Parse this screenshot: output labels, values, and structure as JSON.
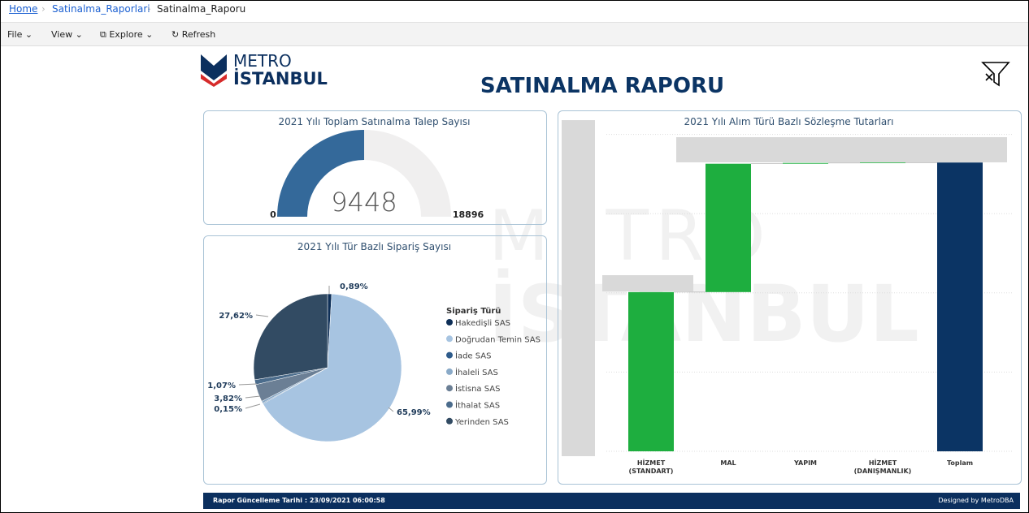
{
  "breadcrumb": [
    "Home",
    "Satinalma_Raporlari",
    "Satinalma_Raporu"
  ],
  "toolbar": [
    "File",
    "View",
    "Explore",
    "Refresh"
  ],
  "logo": [
    "METRO",
    "İSTANBUL"
  ],
  "title": "SATINALMA RAPORU",
  "chart_data": [
    {
      "type": "gauge",
      "title": "2021 Yılı Toplam Satınalma Talep Sayısı",
      "value": 9448,
      "min": 0,
      "max": 18896,
      "color": "#34699a",
      "track_color": "#f0efef"
    },
    {
      "type": "pie",
      "title": "2021 Yılı Tür Bazlı Sipariş Sayısı",
      "legend_title": "Sipariş Türü",
      "categories": [
        "Hakedişli SAS",
        "Doğrudan Temin SAS",
        "İade SAS",
        "İhaleli SAS",
        "İstisna SAS",
        "İthalat SAS",
        "Yerinden SAS"
      ],
      "values": [
        0.89,
        65.99,
        0.15,
        0.46,
        3.82,
        1.07,
        27.62
      ],
      "value_labels": [
        "0,89%",
        "65,99%",
        "0,15%",
        null,
        "3,82%",
        "1,07%",
        "27,62%"
      ],
      "colors": [
        "#0e2f57",
        "#a7c4e1",
        "#2e5b8b",
        "#8aaac8",
        "#6b7f95",
        "#4b6c8c",
        "#324b63"
      ]
    },
    {
      "type": "waterfall",
      "title": "2021 Yılı Alım Türü Bazlı Sözleşme Tutarları",
      "categories": [
        "HİZMET (STANDART)",
        "MAL",
        "YAPIM",
        "HİZMET (DANIŞMANLIK)",
        "Toplam"
      ],
      "values": [
        2.01,
        1.62,
        0.01,
        0.005,
        3.645
      ],
      "colors": {
        "increase": "#1eae3f",
        "total": "#0b3464"
      },
      "ylim": [
        0,
        4.17
      ],
      "yticks": [
        0,
        1,
        2,
        3,
        4
      ],
      "grid": true
    }
  ],
  "footer": {
    "label": "Rapor Güncelleme Tarihi :",
    "date": "23/09/2021 06:00:58",
    "credit": "Designed by MetroDBA"
  }
}
